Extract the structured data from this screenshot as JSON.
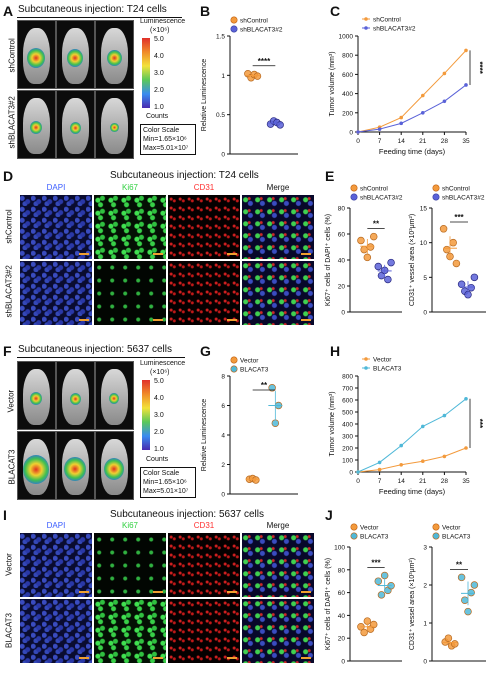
{
  "panels": {
    "A": {
      "label": "A",
      "title": "Subcutaneous injection: T24 cells",
      "row1": "shControl",
      "row2": "shBLACAT3#2",
      "legend_title": "Luminescence",
      "legend_unit": "(×10⁶)",
      "ticks": [
        "5.0",
        "4.0",
        "3.0",
        "2.0",
        "1.0"
      ],
      "counts": "Counts",
      "color_scale": [
        "Color Scale",
        "Min=1.65×10⁶",
        "Max=5.01×10⁷"
      ]
    },
    "B": {
      "label": "B"
    },
    "C": {
      "label": "C"
    },
    "D": {
      "label": "D",
      "title": "Subcutaneous injection: T24 cells",
      "channels": [
        "DAPI",
        "Ki67",
        "CD31",
        "Merge"
      ],
      "channel_colors": [
        "#3a5cff",
        "#30d040",
        "#ff3030",
        "#111111"
      ],
      "row1": "shControl",
      "row2": "shBLACAT3#2"
    },
    "E": {
      "label": "E"
    },
    "F": {
      "label": "F",
      "title": "Subcutaneous injection: 5637 cells",
      "row1": "Vector",
      "row2": "BLACAT3",
      "legend_title": "Luminescence",
      "legend_unit": "(×10⁶)",
      "ticks": [
        "5.0",
        "4.0",
        "3.0",
        "2.0",
        "1.0"
      ],
      "counts": "Counts",
      "color_scale": [
        "Color Scale",
        "Min=1.65×10⁶",
        "Max=5.01×10⁷"
      ]
    },
    "G": {
      "label": "G"
    },
    "H": {
      "label": "H"
    },
    "I": {
      "label": "I",
      "title": "Subcutaneous injection: 5637 cells",
      "channels": [
        "DAPI",
        "Ki67",
        "CD31",
        "Merge"
      ],
      "channel_colors": [
        "#3a5cff",
        "#30d040",
        "#ff3030",
        "#111111"
      ],
      "row1": "Vector",
      "row2": "BLACAT3"
    },
    "J": {
      "label": "J"
    }
  },
  "colors": {
    "control": "#f39a3c",
    "knock": "#5a62d8",
    "vector": "#f39a3c",
    "over": "#4fb8d8"
  },
  "chart_data": [
    {
      "id": "B",
      "type": "scatter",
      "ylabel": "Relative Luminescence",
      "ylim": [
        0,
        1.5
      ],
      "yticks": [
        0,
        0.5,
        1.0,
        1.5
      ],
      "legend": [
        "shControl",
        "shBLACAT3#2"
      ],
      "significance": "****",
      "series": [
        {
          "name": "shControl",
          "values": [
            1.02,
            0.97,
            1.01,
            0.99
          ]
        },
        {
          "name": "shBLACAT3#2",
          "values": [
            0.38,
            0.42,
            0.4,
            0.37
          ]
        }
      ]
    },
    {
      "id": "C",
      "type": "line",
      "xlabel": "Feeding time (days)",
      "ylabel": "Tumor volume (mm³)",
      "ylim": [
        0,
        1000
      ],
      "yticks": [
        0,
        200,
        400,
        600,
        800,
        1000
      ],
      "x": [
        0,
        7,
        14,
        21,
        28,
        35
      ],
      "significance": "****",
      "series": [
        {
          "name": "shControl",
          "values": [
            0,
            50,
            150,
            380,
            610,
            850
          ]
        },
        {
          "name": "shBLACAT3#2",
          "values": [
            0,
            30,
            90,
            200,
            320,
            490
          ]
        }
      ]
    },
    {
      "id": "E1",
      "type": "scatter",
      "ylabel": "Ki67⁺ cells of DAPI⁺ cells (%)",
      "ylim": [
        0,
        80
      ],
      "yticks": [
        0,
        20,
        40,
        60,
        80
      ],
      "legend": [
        "shControl",
        "shBLACAT3#2"
      ],
      "significance": "**",
      "series": [
        {
          "name": "shControl",
          "values": [
            55,
            48,
            42,
            50,
            58
          ]
        },
        {
          "name": "shBLACAT3#2",
          "values": [
            35,
            28,
            32,
            25,
            38
          ]
        }
      ]
    },
    {
      "id": "E2",
      "type": "scatter",
      "ylabel": "CD31⁺ vessel area (×10³μm²)",
      "ylim": [
        0,
        15
      ],
      "yticks": [
        0,
        5,
        10,
        15
      ],
      "legend": [
        "shControl",
        "shBLACAT3#2"
      ],
      "significance": "***",
      "series": [
        {
          "name": "shControl",
          "values": [
            12,
            9,
            8,
            10,
            7
          ]
        },
        {
          "name": "shBLACAT3#2",
          "values": [
            4,
            3,
            2.5,
            3.5,
            5
          ]
        }
      ]
    },
    {
      "id": "G",
      "type": "scatter",
      "ylabel": "Relative Luminescence",
      "ylim": [
        0,
        8
      ],
      "yticks": [
        0,
        2,
        4,
        6,
        8
      ],
      "legend": [
        "Vector",
        "BLACAT3"
      ],
      "significance": "**",
      "series": [
        {
          "name": "Vector",
          "values": [
            1.0,
            1.05,
            0.95
          ]
        },
        {
          "name": "BLACAT3",
          "values": [
            7.2,
            4.8,
            6.0
          ]
        }
      ]
    },
    {
      "id": "H",
      "type": "line",
      "xlabel": "Feeding time (days)",
      "ylabel": "Tumor volume (mm³)",
      "ylim": [
        0,
        800
      ],
      "yticks": [
        0,
        100,
        200,
        300,
        400,
        500,
        600,
        700,
        800
      ],
      "x": [
        0,
        7,
        14,
        21,
        28,
        35
      ],
      "significance": "***",
      "series": [
        {
          "name": "Vector",
          "values": [
            0,
            20,
            60,
            90,
            130,
            200
          ]
        },
        {
          "name": "BLACAT3",
          "values": [
            0,
            80,
            220,
            380,
            470,
            610
          ]
        }
      ]
    },
    {
      "id": "J1",
      "type": "scatter",
      "ylabel": "Ki67⁺ cells of DAPI⁺ cells (%)",
      "ylim": [
        0,
        100
      ],
      "yticks": [
        0,
        20,
        40,
        60,
        80,
        100
      ],
      "legend": [
        "Vector",
        "BLACAT3"
      ],
      "significance": "***",
      "series": [
        {
          "name": "Vector",
          "values": [
            30,
            25,
            35,
            28,
            32
          ]
        },
        {
          "name": "BLACAT3",
          "values": [
            70,
            58,
            75,
            62,
            66
          ]
        }
      ]
    },
    {
      "id": "J2",
      "type": "scatter",
      "ylabel": "CD31⁺ vessel area (×10³μm²)",
      "ylim": [
        0,
        3
      ],
      "yticks": [
        0,
        1,
        2,
        3
      ],
      "legend": [
        "Vector",
        "BLACAT3"
      ],
      "significance": "**",
      "series": [
        {
          "name": "Vector",
          "values": [
            0.5,
            0.6,
            0.4,
            0.45
          ]
        },
        {
          "name": "BLACAT3",
          "values": [
            2.2,
            1.6,
            1.3,
            1.8,
            2.0
          ]
        }
      ]
    }
  ]
}
